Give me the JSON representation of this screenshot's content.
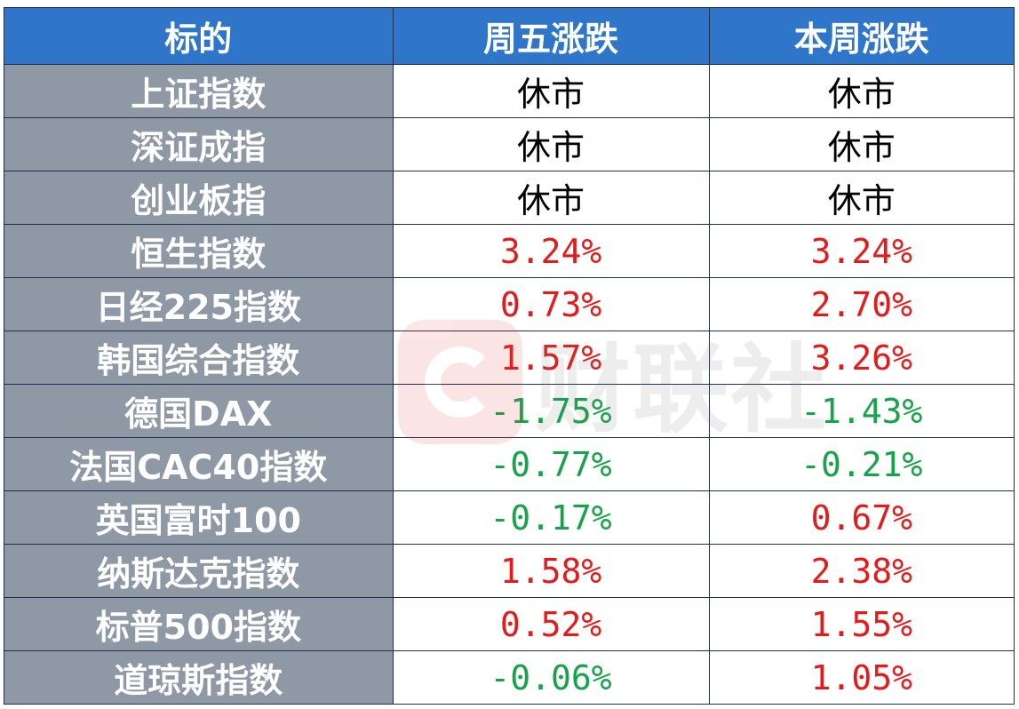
{
  "header": {
    "col1": "标的",
    "col2": "周五涨跌",
    "col3": "本周涨跌"
  },
  "rows": [
    {
      "name": "上证指数",
      "friday": "休市",
      "week": "休市"
    },
    {
      "name": "深证成指",
      "friday": "休市",
      "week": "休市"
    },
    {
      "name": "创业板指",
      "friday": "休市",
      "week": "休市"
    },
    {
      "name": "恒生指数",
      "friday": "3.24%",
      "week": "3.24%"
    },
    {
      "name": "日经225指数",
      "friday": "0.73%",
      "week": "2.70%"
    },
    {
      "name": "韩国综合指数",
      "friday": "1.57%",
      "week": "3.26%"
    },
    {
      "name": "德国DAX",
      "friday": "-1.75%",
      "week": "-1.43%"
    },
    {
      "name": "法国CAC40指数",
      "friday": "-0.77%",
      "week": "-0.21%"
    },
    {
      "name": "英国富时100",
      "friday": "-0.17%",
      "week": "0.67%"
    },
    {
      "name": "纳斯达克指数",
      "friday": "1.58%",
      "week": "2.38%"
    },
    {
      "name": "标普500指数",
      "friday": "0.52%",
      "week": "1.55%"
    },
    {
      "name": "道琼斯指数",
      "friday": "-0.06%",
      "week": "1.05%"
    }
  ],
  "watermark": {
    "text": "财联社",
    "logo_icon": "cls-logo-icon",
    "logo_color": "#e83a3a"
  },
  "colors": {
    "header_bg": "#2f75c9",
    "name_bg": "#8f99a6",
    "up": "#e31b1b",
    "down": "#17a34a"
  }
}
